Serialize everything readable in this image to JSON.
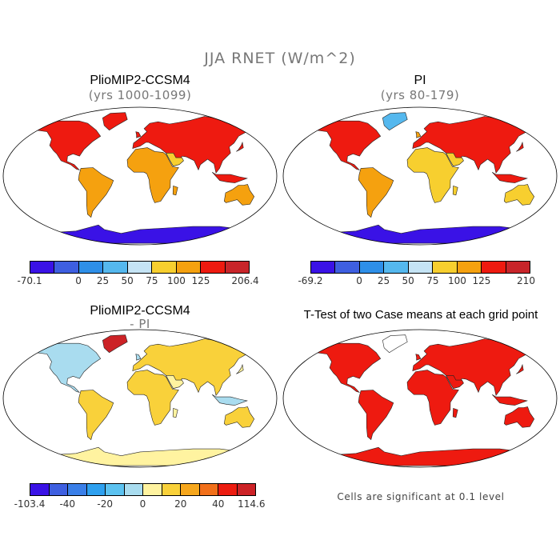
{
  "title": "JJA RNET (W/m^2)",
  "panels": [
    {
      "id": "plio",
      "title": "PlioMIP2-CCSM4",
      "subtitle": "(yrs 1000-1099)",
      "colorbar": {
        "colors": [
          "#3a12e6",
          "#3e5fe0",
          "#2e8fe8",
          "#55b8ee",
          "#c5e4f5",
          "#f7cf2f",
          "#f5a10f",
          "#ee1a10",
          "#c8252a"
        ],
        "tick_labels": [
          "-70.1",
          "0",
          "25",
          "50",
          "75",
          "100",
          "125",
          "206.4"
        ]
      }
    },
    {
      "id": "pi",
      "title": "PI",
      "subtitle": "(yrs 80-179)",
      "colorbar": {
        "colors": [
          "#3a12e6",
          "#3e5fe0",
          "#2e8fe8",
          "#55b8ee",
          "#c5e4f5",
          "#f7cf2f",
          "#f5a10f",
          "#ee1a10",
          "#c8252a"
        ],
        "tick_labels": [
          "-69.2",
          "0",
          "25",
          "50",
          "75",
          "100",
          "125",
          "210"
        ]
      }
    },
    {
      "id": "diff",
      "title": "PlioMIP2-CCSM4",
      "subtitle": "- PI",
      "colorbar": {
        "colors": [
          "#3a12e6",
          "#3e5fe0",
          "#3a7fe8",
          "#2ea0ef",
          "#5cc2f0",
          "#a9dcef",
          "#fff3a0",
          "#f9d13a",
          "#f6a71d",
          "#f2701a",
          "#ec1c10",
          "#cc2226"
        ],
        "tick_labels": [
          "-103.4",
          "-40",
          "-20",
          "0",
          "20",
          "40",
          "114.6"
        ]
      }
    },
    {
      "id": "ttest",
      "title": "T-Test of two Case means at each grid point",
      "note": "Cells are significant at 0.1 level"
    }
  ]
}
